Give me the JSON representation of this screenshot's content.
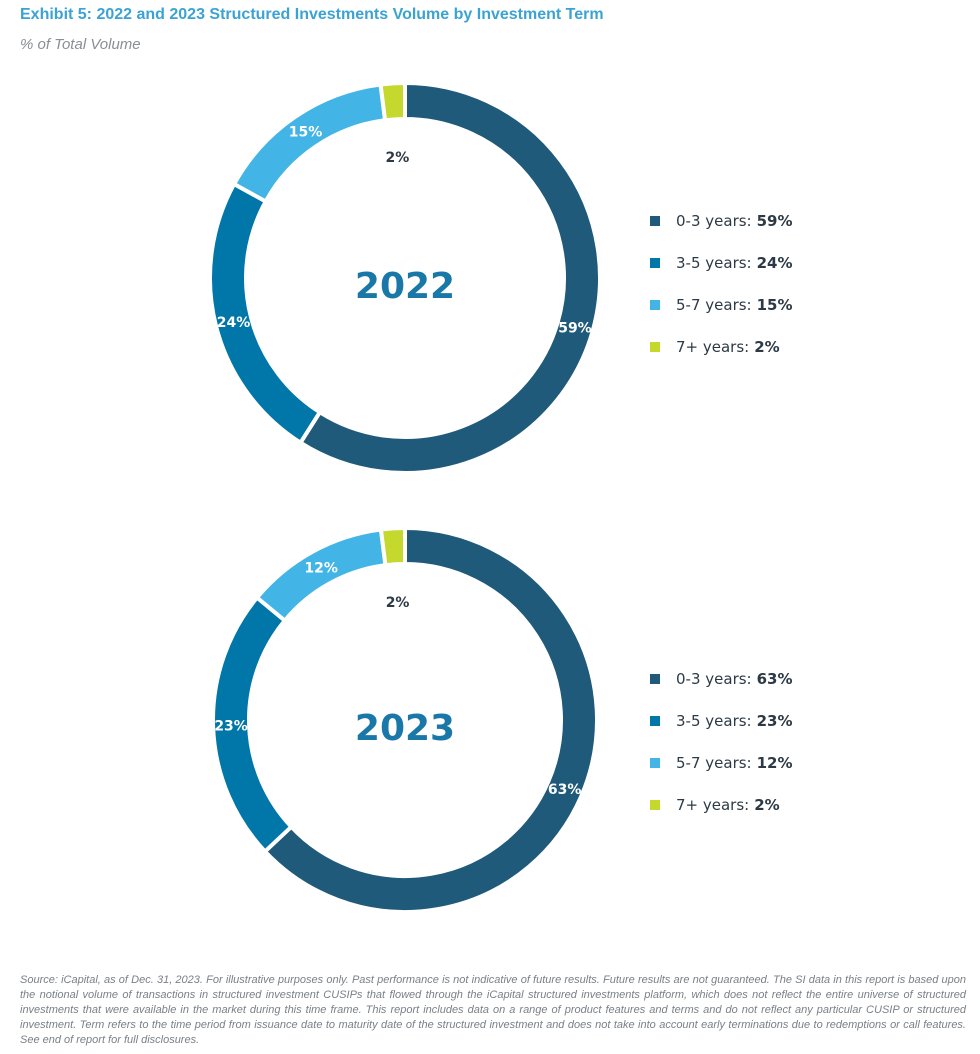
{
  "title": "Exhibit 5: 2022 and 2023 Structured Investments Volume by Investment Term",
  "subtitle": "% of Total Volume",
  "footnote": "Source: iCapital, as of Dec. 31, 2023. For illustrative purposes only. Past performance is not indicative of future results. Future results are not guaranteed. The SI data in this report is based upon the notional volume of transactions in structured investment CUSIPs that flowed through the iCapital structured investments platform, which does not reflect the entire universe of structured investments that were available in the market during this time frame. This report includes data on a range of product features and terms and do not reflect any particular CUSIP or structured investment. Term refers to the time period from issuance date to maturity date of the structured investment and does not take into account early terminations due to redemptions or call features. See end of report for full disclosures.",
  "chart_data": [
    {
      "type": "pie",
      "donut": true,
      "center_label": "2022",
      "categories": [
        "0-3 years",
        "3-5 years",
        "5-7 years",
        "7+ years"
      ],
      "values": [
        59,
        24,
        15,
        2
      ],
      "data_labels": [
        "59%",
        "24%",
        "15%",
        "2%"
      ],
      "legend_labels": [
        "0-3 years:",
        "3-5 years:",
        "5-7 years:",
        "7+ years:"
      ],
      "colors": [
        "#1F5A7A",
        "#0077A8",
        "#42B4E6",
        "#C4D82E"
      ],
      "legend": "right"
    },
    {
      "type": "pie",
      "donut": true,
      "center_label": "2023",
      "categories": [
        "0-3 years",
        "3-5 years",
        "5-7 years",
        "7+ years"
      ],
      "values": [
        63,
        23,
        12,
        2
      ],
      "data_labels": [
        "63%",
        "23%",
        "12%",
        "2%"
      ],
      "legend_labels": [
        "0-3 years:",
        "3-5 years:",
        "5-7 years:",
        "7+ years:"
      ],
      "colors": [
        "#1F5A7A",
        "#0077A8",
        "#42B4E6",
        "#C4D82E"
      ],
      "legend": "right"
    }
  ]
}
